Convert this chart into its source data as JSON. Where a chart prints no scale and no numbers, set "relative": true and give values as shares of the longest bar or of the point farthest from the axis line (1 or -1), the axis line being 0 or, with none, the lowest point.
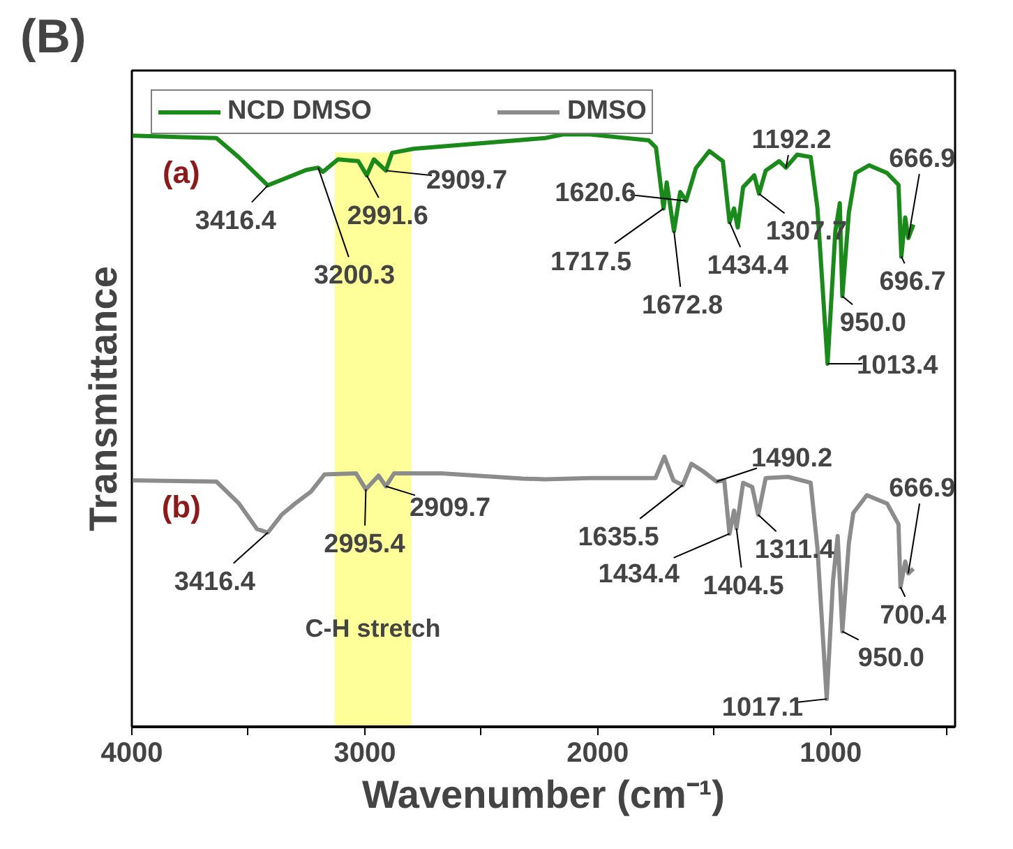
{
  "chart_data": {
    "type": "line",
    "title": "(B)",
    "xlabel": "Wavenumber (cm⁻¹)",
    "ylabel": "Transmittance",
    "relative": true,
    "xlim": [
      4000,
      466
    ],
    "xticks": [
      4000,
      {
        "value": 3500,
        "label": null
      },
      3000,
      {
        "value": 2500,
        "label": null
      },
      2000,
      {
        "value": 1500,
        "label": null
      },
      1000,
      {
        "value": 500,
        "label": null
      }
    ],
    "legend": "top left",
    "grid": false,
    "bands": [
      {
        "axis": "x",
        "from": 3130,
        "to": 2800,
        "label": "C-H stretch",
        "color": "#ffff99"
      }
    ],
    "series": [
      {
        "name": "NCD DMSO",
        "color": "#1a8a1a",
        "x": [
          4000,
          3637,
          3542,
          3416.4,
          3252,
          3200.3,
          3180,
          3115,
          3028,
          2991.6,
          2961,
          2909.7,
          2883,
          2788,
          2477,
          2226,
          2149,
          2033,
          1781,
          1750,
          1717.5,
          1704,
          1672.8,
          1646,
          1620.6,
          1579,
          1521,
          1463,
          1434.4,
          1415,
          1399,
          1376,
          1328,
          1307.7,
          1279,
          1221,
          1192.2,
          1144,
          1086,
          1057,
          1013.4,
          980,
          961,
          950.0,
          922,
          893,
          835,
          758,
          709,
          696.7,
          680,
          666.9,
          645
        ],
        "values": [
          0.998,
          0.994,
          0.962,
          0.914,
          0.94,
          0.944,
          0.937,
          0.958,
          0.955,
          0.931,
          0.958,
          0.939,
          0.969,
          0.976,
          0.986,
          0.994,
          1.0,
          1.0,
          0.99,
          0.978,
          0.875,
          0.919,
          0.837,
          0.903,
          0.888,
          0.943,
          0.972,
          0.955,
          0.852,
          0.875,
          0.843,
          0.911,
          0.931,
          0.9,
          0.939,
          0.955,
          0.944,
          0.966,
          0.962,
          0.876,
          0.613,
          0.837,
          0.884,
          0.727,
          0.868,
          0.935,
          0.948,
          0.935,
          0.915,
          0.794,
          0.86,
          0.825,
          0.848
        ]
      },
      {
        "name": "DMSO",
        "color": "#8c8c8c",
        "x": [
          4000,
          3637,
          3540,
          3463,
          3416.4,
          3357,
          3299,
          3231,
          3173,
          3038,
          2995.4,
          2941,
          2909.7,
          2874,
          2671,
          2323,
          2226,
          2033,
          1752,
          1714,
          1675,
          1635.5,
          1598,
          1550,
          1490.2,
          1457,
          1434.4,
          1415,
          1404.5,
          1376,
          1337,
          1311.4,
          1279,
          1183,
          1086,
          1057,
          1017.1,
          990,
          970,
          950.0,
          922,
          903,
          845,
          758,
          709,
          700.4,
          680,
          666.9,
          645
        ],
        "values": [
          0.416,
          0.414,
          0.377,
          0.334,
          0.328,
          0.358,
          0.377,
          0.397,
          0.426,
          0.428,
          0.401,
          0.424,
          0.406,
          0.428,
          0.428,
          0.419,
          0.418,
          0.42,
          0.42,
          0.456,
          0.416,
          0.408,
          0.444,
          0.432,
          0.414,
          0.416,
          0.326,
          0.365,
          0.335,
          0.412,
          0.405,
          0.358,
          0.42,
          0.422,
          0.412,
          0.302,
          0.047,
          0.247,
          0.322,
          0.161,
          0.31,
          0.361,
          0.391,
          0.377,
          0.342,
          0.236,
          0.279,
          0.259,
          0.267
        ]
      }
    ],
    "annotations": [
      "(a)",
      "(b)",
      {
        "text": "3416.4",
        "x": 3416.4,
        "y": 0.914
      },
      {
        "text": "3200.3",
        "x": 3200.3,
        "y": 0.944
      },
      {
        "text": "2991.6",
        "x": 2991.6,
        "y": 0.931
      },
      {
        "text": "2909.7",
        "x": 2909.7,
        "y": 0.939
      },
      {
        "text": "1717.5",
        "x": 1717.5,
        "y": 0.875
      },
      {
        "text": "1672.8",
        "x": 1672.8,
        "y": 0.837
      },
      {
        "text": "1620.6",
        "x": 1620.6,
        "y": 0.888
      },
      {
        "text": "1434.4",
        "x": 1434.4,
        "y": 0.852
      },
      {
        "text": "1307.7",
        "x": 1307.7,
        "y": 0.9
      },
      {
        "text": "1192.2",
        "x": 1192.2,
        "y": 0.944
      },
      {
        "text": "1013.4",
        "x": 1013.4,
        "y": 0.613
      },
      {
        "text": "950.0",
        "x": 950.0,
        "y": 0.727
      },
      {
        "text": "696.7",
        "x": 696.7,
        "y": 0.794
      },
      {
        "text": "666.9",
        "x": 666.9,
        "y": 0.825
      },
      {
        "text": "3416.4",
        "x": 3416.4,
        "y": 0.328
      },
      {
        "text": "2995.4",
        "x": 2995.4,
        "y": 0.401
      },
      {
        "text": "2909.7",
        "x": 2909.7,
        "y": 0.406
      },
      {
        "text": "1635.5",
        "x": 1635.5,
        "y": 0.408
      },
      {
        "text": "1490.2",
        "x": 1490.2,
        "y": 0.414
      },
      {
        "text": "1434.4",
        "x": 1434.4,
        "y": 0.326
      },
      {
        "text": "1404.5",
        "x": 1404.5,
        "y": 0.335
      },
      {
        "text": "1311.4",
        "x": 1311.4,
        "y": 0.358
      },
      {
        "text": "1017.1",
        "x": 1017.1,
        "y": 0.047
      },
      {
        "text": "950.0",
        "x": 950.0,
        "y": 0.161
      },
      {
        "text": "700.4",
        "x": 700.4,
        "y": 0.236
      },
      {
        "text": "666.9",
        "x": 666.9,
        "y": 0.259
      }
    ]
  }
}
